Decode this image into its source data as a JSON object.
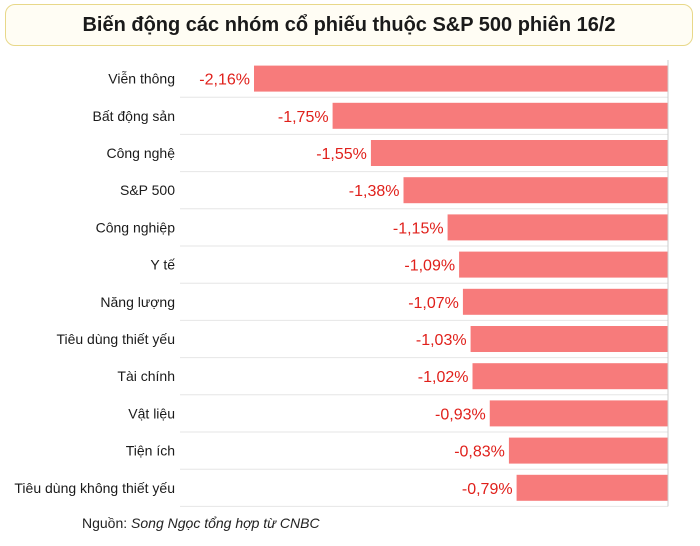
{
  "header": {
    "title": "Biến động các nhóm cổ phiếu thuộc S&P 500 phiên 16/2"
  },
  "chart_data": {
    "type": "bar",
    "orientation": "horizontal",
    "title": "Biến động các nhóm cổ phiếu thuộc S&P 500 phiên 16/2",
    "xlabel": "",
    "ylabel": "",
    "grid": false,
    "categories": [
      "Viễn thông",
      "Bất động sản",
      "Công nghệ",
      "S&P 500",
      "Công nghiệp",
      "Y tế",
      "Năng lượng",
      "Tiêu dùng thiết yếu",
      "Tài chính",
      "Vật liệu",
      "Tiện ích",
      "Tiêu dùng không thiết yếu"
    ],
    "values": [
      -2.16,
      -1.75,
      -1.55,
      -1.38,
      -1.15,
      -1.09,
      -1.07,
      -1.03,
      -1.02,
      -0.93,
      -0.83,
      -0.79
    ],
    "value_labels": [
      "-2,16%",
      "-1,75%",
      "-1,55%",
      "-1,38%",
      "-1,15%",
      "-1,09%",
      "-1,07%",
      "-1,03%",
      "-1,02%",
      "-0,93%",
      "-0,83%",
      "-0,79%"
    ],
    "xlim": [
      -2.16,
      0
    ],
    "colors": {
      "bar": "#f77b7b",
      "value_label": "#e0201b",
      "category_label": "#1a1a1a",
      "axis": "#cccccc",
      "row_divider": "#e6e6e6"
    }
  },
  "footer": {
    "source_label": "Nguồn:",
    "source_author": "Song Ngọc tổng hợp từ CNBC"
  }
}
